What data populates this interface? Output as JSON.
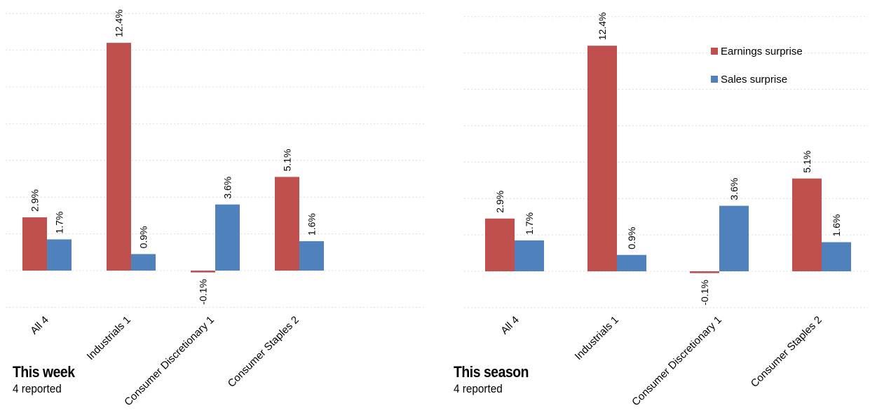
{
  "chart_data": [
    {
      "type": "bar",
      "title": "This week",
      "subtitle": "4 reported",
      "categories": [
        "All 4",
        "Industrials 1",
        "Consumer Discretionary 1",
        "Consumer Staples 2"
      ],
      "series": [
        {
          "name": "Earnings surprise",
          "values": [
            2.9,
            12.4,
            -0.1,
            5.1
          ],
          "labels": [
            "2.9%",
            "12.4%",
            "-0.1%",
            "5.1%"
          ],
          "color": "#c0504d"
        },
        {
          "name": "Sales surprise",
          "values": [
            1.7,
            0.9,
            3.6,
            1.6
          ],
          "labels": [
            "1.7%",
            "0.9%",
            "3.6%",
            "1.6%"
          ],
          "color": "#4f81bd"
        }
      ],
      "ylim": [
        -2,
        14
      ],
      "grid": true,
      "legend": "none"
    },
    {
      "type": "bar",
      "title": "This season",
      "subtitle": "4 reported",
      "categories": [
        "All 4",
        "Industrials 1",
        "Consumer Discretionary 1",
        "Consumer Staples 2"
      ],
      "series": [
        {
          "name": "Earnings surprise",
          "values": [
            2.9,
            12.4,
            -0.1,
            5.1
          ],
          "labels": [
            "2.9%",
            "12.4%",
            "-0.1%",
            "5.1%"
          ],
          "color": "#c0504d"
        },
        {
          "name": "Sales surprise",
          "values": [
            1.7,
            0.9,
            3.6,
            1.6
          ],
          "labels": [
            "1.7%",
            "0.9%",
            "3.6%",
            "1.6%"
          ],
          "color": "#4f81bd"
        }
      ],
      "ylim": [
        -2,
        14
      ],
      "grid": true,
      "legend": "top-right"
    }
  ]
}
